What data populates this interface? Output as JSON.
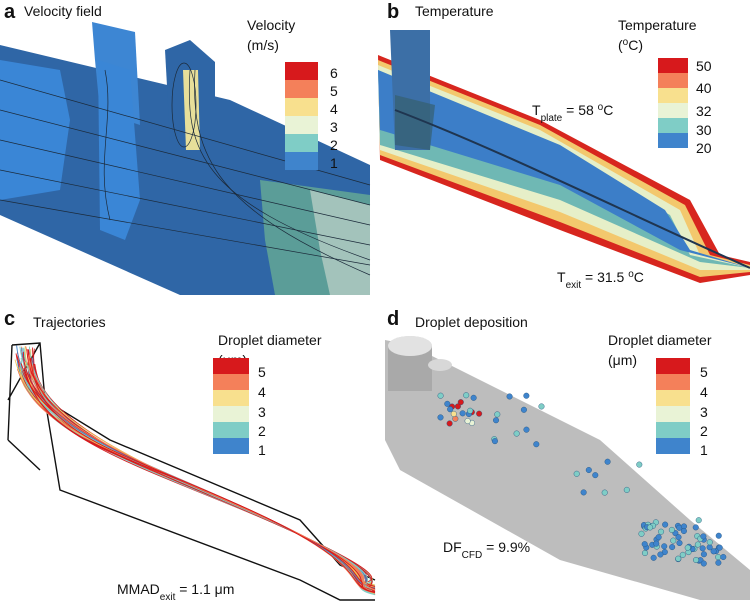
{
  "panels": [
    {
      "label": "a",
      "title": "Velocity field",
      "legend": {
        "title": "Velocity",
        "unit": {
          "text": "(m/s)"
        },
        "ticks": [
          6,
          5,
          4,
          3,
          2,
          1
        ]
      }
    },
    {
      "label": "b",
      "title": "Temperature",
      "legend": {
        "title": "Temperature",
        "unit": {
          "text": "(",
          "sup": "o",
          "end": "C)"
        },
        "ticks": [
          50,
          40,
          32,
          30,
          20
        ]
      },
      "annotations": [
        {
          "text": "T",
          "sub": "plate",
          "mid": " = 58 ",
          "sup": "o",
          "end": "C"
        },
        {
          "text": "T",
          "sub": "exit",
          "mid": " = 31.5 ",
          "sup": "o",
          "end": "C"
        }
      ]
    },
    {
      "label": "c",
      "title": "Trajectories",
      "legend": {
        "title": "Droplet diameter",
        "unit": {
          "text": "(μm)"
        },
        "ticks": [
          5,
          4,
          3,
          2,
          1
        ]
      },
      "annotations": [
        {
          "text": "MMAD",
          "sub": "exit",
          "mid": " = 1.1 μm"
        }
      ]
    },
    {
      "label": "d",
      "title": "Droplet deposition",
      "legend": {
        "title": "Droplet diameter",
        "unit": {
          "text": "(μm)"
        },
        "ticks": [
          5,
          4,
          3,
          2,
          1
        ]
      },
      "annotations": [
        {
          "text": "DF",
          "sub": "CFD",
          "mid": " = 9.9%"
        }
      ]
    }
  ]
}
